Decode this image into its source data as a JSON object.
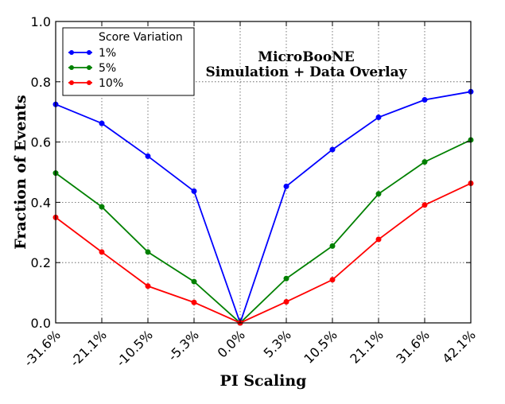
{
  "chart_data": {
    "type": "line",
    "title": "",
    "annotation": [
      "MicroBooNE",
      "Simulation + Data Overlay"
    ],
    "xlabel": "PI Scaling",
    "ylabel": "Fraction of Events",
    "categories": [
      "-31.6%",
      "-21.1%",
      "-10.5%",
      "-5.3%",
      "0.0%",
      "5.3%",
      "10.5%",
      "21.1%",
      "31.6%",
      "42.1%"
    ],
    "ylim": [
      0.0,
      1.0
    ],
    "yticks": [
      "0.0",
      "0.2",
      "0.4",
      "0.6",
      "0.8",
      "1.0"
    ],
    "grid": true,
    "legend": {
      "title": "Score Variation",
      "position": "top-left"
    },
    "series": [
      {
        "name": "1%",
        "color": "#0000ff",
        "values": [
          0.725,
          0.662,
          0.553,
          0.437,
          0.0,
          0.453,
          0.575,
          0.682,
          0.74,
          0.767
        ]
      },
      {
        "name": "5%",
        "color": "#008000",
        "values": [
          0.497,
          0.385,
          0.235,
          0.137,
          0.0,
          0.147,
          0.255,
          0.428,
          0.534,
          0.607
        ]
      },
      {
        "name": "10%",
        "color": "#ff0000",
        "values": [
          0.35,
          0.235,
          0.122,
          0.068,
          0.0,
          0.07,
          0.143,
          0.277,
          0.391,
          0.463
        ]
      }
    ]
  }
}
